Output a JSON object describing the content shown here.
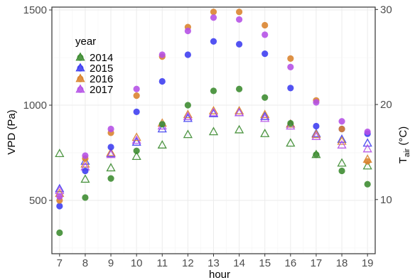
{
  "chart_data": {
    "type": "scatter",
    "xlabel": "hour",
    "ylabel": "VPD (Pa)",
    "y2label_main": "T",
    "y2label_sub": "air",
    "y2label_unit": " (°C)",
    "x": [
      7,
      8,
      9,
      10,
      11,
      12,
      13,
      14,
      15,
      16,
      17,
      18,
      19
    ],
    "xticks": [
      "7",
      "8",
      "9",
      "10",
      "11",
      "12",
      "13",
      "14",
      "15",
      "16",
      "17",
      "18",
      "19"
    ],
    "xlim": [
      6.7,
      19.3
    ],
    "ylim": [
      220,
      1515
    ],
    "yticks": [
      500,
      1000,
      1500
    ],
    "yticklabels": [
      "500",
      "1000",
      "1500"
    ],
    "y2lim": [
      4.3,
      30.25
    ],
    "y2ticks": [
      10,
      20,
      30
    ],
    "y2ticklabels": [
      "10",
      "20",
      "30"
    ],
    "grid": true,
    "legend": {
      "title": "year",
      "position": "top-left"
    },
    "series": [
      {
        "name": "2014",
        "color": "#3a8a2e",
        "vpd": [
          330,
          515,
          615,
          760,
          900,
          1000,
          1075,
          1085,
          1040,
          905,
          740,
          655,
          585
        ],
        "tair": [
          14.8,
          12.1,
          13.3,
          14.5,
          15.7,
          16.8,
          17.1,
          17.3,
          16.9,
          15.9,
          14.7,
          13.8,
          13.5
        ]
      },
      {
        "name": "2015",
        "color": "#3b3bf0",
        "vpd": [
          470,
          655,
          780,
          965,
          1125,
          1265,
          1335,
          1320,
          1270,
          1090,
          890,
          875,
          850
        ],
        "tair": [
          11.1,
          14.0,
          14.8,
          16.0,
          17.4,
          18.5,
          19.0,
          19.1,
          18.7,
          17.9,
          16.9,
          16.3,
          15.9
        ]
      },
      {
        "name": "2016",
        "color": "#d9822b",
        "vpd": [
          500,
          720,
          855,
          1050,
          1255,
          1410,
          1490,
          1490,
          1420,
          1245,
          1025,
          875,
          705
        ],
        "tair": [
          10.6,
          13.7,
          14.9,
          16.5,
          18.0,
          18.9,
          19.3,
          19.3,
          18.9,
          17.9,
          16.8,
          16.1,
          14.2
        ]
      },
      {
        "name": "2017",
        "color": "#b44ee6",
        "vpd": [
          520,
          735,
          875,
          1085,
          1265,
          1390,
          1460,
          1450,
          1370,
          1200,
          1015,
          915,
          860
        ],
        "tair": [
          10.9,
          13.4,
          14.7,
          16.2,
          17.7,
          18.7,
          19.1,
          19.1,
          18.5,
          17.7,
          16.6,
          15.7,
          15.3
        ]
      }
    ]
  }
}
